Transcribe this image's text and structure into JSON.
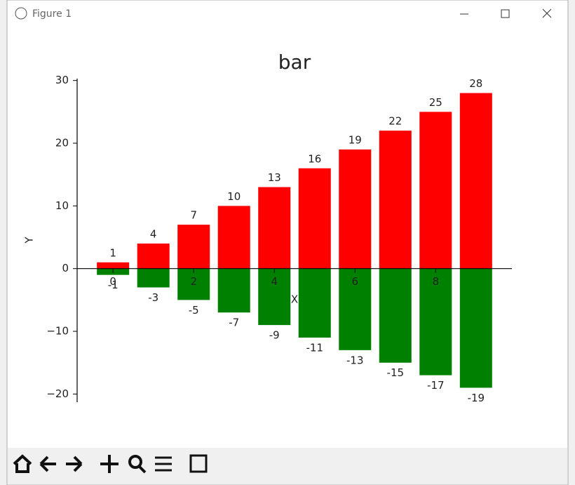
{
  "window": {
    "title": "Figure 1"
  },
  "chart_data": {
    "type": "bar",
    "title": "bar",
    "x_label": "X",
    "y_label": "Y",
    "x": [
      0,
      1,
      2,
      3,
      4,
      5,
      6,
      7,
      8,
      9
    ],
    "series": [
      {
        "color": "#ff0000",
        "values": [
          1,
          4,
          7,
          10,
          13,
          16,
          19,
          22,
          25,
          28
        ]
      },
      {
        "color": "#008000",
        "values": [
          -1,
          -3,
          -5,
          -7,
          -9,
          -11,
          -13,
          -15,
          -17,
          -19
        ]
      }
    ],
    "xlim": [
      -0.89,
      9.89
    ],
    "xticks": [
      0,
      2,
      4,
      6,
      8
    ],
    "ylim": [
      -21.3,
      30.3
    ],
    "yticks": [
      {
        "value": -20,
        "label": "−20"
      },
      {
        "value": -10,
        "label": "−10"
      },
      0,
      10,
      20,
      30
    ],
    "bar_width": 0.8,
    "grid": false
  }
}
